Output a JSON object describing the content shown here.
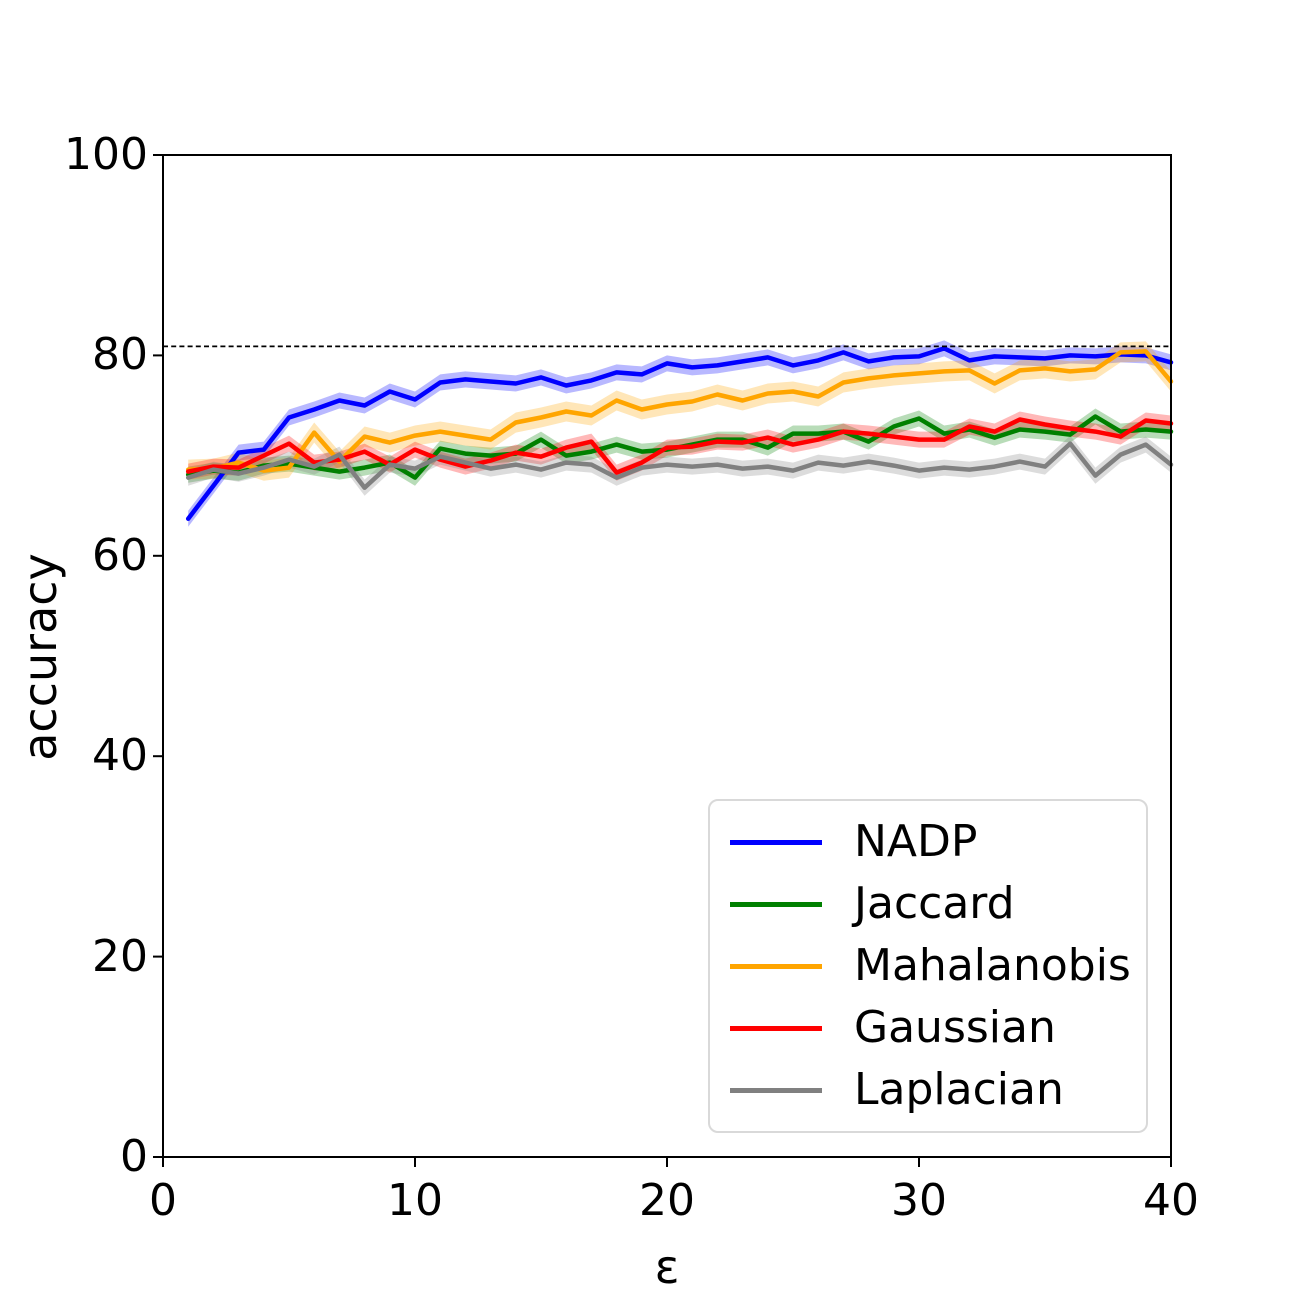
{
  "figure": {
    "background": "#ffffff",
    "frame_color": "#000000"
  },
  "chart_data": {
    "type": "line",
    "title": "",
    "xlabel": "ε",
    "ylabel": "accuracy",
    "xlim": [
      0,
      40
    ],
    "ylim": [
      0,
      100
    ],
    "x_ticks": [
      0,
      10,
      20,
      30,
      40
    ],
    "y_ticks": [
      0,
      20,
      40,
      60,
      80,
      100
    ],
    "grid": false,
    "legend_position": "lower right",
    "hline": {
      "y": 80.9,
      "style": "dashed",
      "color": "#000000"
    },
    "x": [
      1,
      2,
      3,
      4,
      5,
      6,
      7,
      8,
      9,
      10,
      11,
      12,
      13,
      14,
      15,
      16,
      17,
      18,
      19,
      20,
      21,
      22,
      23,
      24,
      25,
      26,
      27,
      28,
      29,
      30,
      31,
      32,
      33,
      34,
      35,
      36,
      37,
      38,
      39,
      40
    ],
    "series": [
      {
        "name": "NADP",
        "color": "#0000ff",
        "band": 0.8,
        "values": [
          63.7,
          67.0,
          70.3,
          70.6,
          73.8,
          74.6,
          75.5,
          75.0,
          76.4,
          75.6,
          77.3,
          77.6,
          77.4,
          77.2,
          77.8,
          77.0,
          77.5,
          78.3,
          78.1,
          79.2,
          78.8,
          79.0,
          79.4,
          79.8,
          79.0,
          79.5,
          80.3,
          79.4,
          79.8,
          79.9,
          80.7,
          79.5,
          79.9,
          79.8,
          79.7,
          80.0,
          79.9,
          80.1,
          80.0,
          79.3
        ]
      },
      {
        "name": "Jaccard",
        "color": "#008000",
        "band": 0.8,
        "values": [
          68.1,
          68.5,
          68.3,
          69.0,
          69.2,
          68.8,
          68.4,
          68.8,
          69.3,
          67.8,
          70.7,
          70.2,
          70.0,
          70.2,
          71.6,
          70.0,
          70.4,
          71.1,
          70.4,
          70.6,
          71.1,
          71.6,
          71.6,
          70.8,
          72.2,
          72.2,
          72.4,
          71.4,
          72.9,
          73.7,
          72.2,
          72.6,
          71.8,
          72.6,
          72.4,
          72.1,
          73.9,
          72.4,
          72.6,
          72.4
        ]
      },
      {
        "name": "Mahalanobis",
        "color": "#ffa500",
        "band": 1.0,
        "values": [
          68.6,
          68.7,
          69.3,
          68.5,
          68.8,
          72.3,
          69.4,
          71.9,
          71.3,
          72.0,
          72.4,
          72.0,
          71.6,
          73.3,
          73.8,
          74.4,
          74.0,
          75.5,
          74.6,
          75.1,
          75.4,
          76.1,
          75.5,
          76.2,
          76.4,
          75.9,
          77.3,
          77.7,
          78.0,
          78.2,
          78.4,
          78.5,
          77.2,
          78.5,
          78.7,
          78.4,
          78.6,
          80.3,
          80.4,
          77.4
        ]
      },
      {
        "name": "Gaussian",
        "color": "#ff0000",
        "band": 0.8,
        "values": [
          68.4,
          68.9,
          68.8,
          70.0,
          71.2,
          69.3,
          69.6,
          70.4,
          69.1,
          70.6,
          69.6,
          68.9,
          69.5,
          70.3,
          69.9,
          70.8,
          71.4,
          68.3,
          69.3,
          70.8,
          70.9,
          71.4,
          71.3,
          71.8,
          71.1,
          71.6,
          72.4,
          72.2,
          71.9,
          71.6,
          71.6,
          72.9,
          72.4,
          73.6,
          73.1,
          72.7,
          72.4,
          71.9,
          73.5,
          73.2
        ]
      },
      {
        "name": "Laplacian",
        "color": "#808080",
        "band": 0.8,
        "values": [
          67.8,
          68.6,
          68.2,
          68.8,
          69.6,
          68.9,
          70.1,
          66.8,
          69.1,
          68.7,
          69.9,
          69.3,
          68.7,
          69.1,
          68.6,
          69.3,
          69.1,
          67.8,
          68.8,
          69.1,
          68.9,
          69.1,
          68.7,
          68.9,
          68.5,
          69.3,
          69.0,
          69.4,
          69.0,
          68.5,
          68.8,
          68.6,
          68.9,
          69.4,
          68.9,
          71.2,
          68.0,
          70.1,
          71.1,
          69.1
        ]
      }
    ]
  }
}
